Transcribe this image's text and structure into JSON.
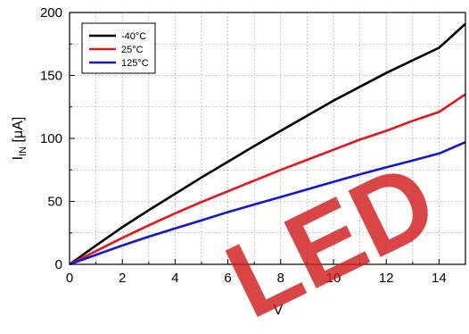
{
  "chart_data": {
    "type": "line",
    "ylabel_main": "I",
    "ylabel_sub": "IN",
    "ylabel_unit": " [μA]",
    "xlabel": "V",
    "xlim": [
      0,
      15
    ],
    "ylim": [
      0,
      200
    ],
    "x_ticks": [
      0,
      2,
      4,
      6,
      8,
      10,
      12,
      14
    ],
    "y_ticks": [
      0,
      50,
      100,
      150,
      200
    ],
    "grid": true,
    "legend_position": "top-left",
    "x": [
      0,
      1,
      2,
      3,
      4,
      5,
      6,
      7,
      8,
      9,
      10,
      11,
      12,
      13,
      14,
      15
    ],
    "series": [
      {
        "name": "-40°C",
        "color": "#000000",
        "values": [
          0,
          15,
          29.5,
          43,
          56,
          69,
          81.5,
          94,
          106,
          118,
          130,
          141,
          152,
          162,
          172,
          191
        ]
      },
      {
        "name": "25°C",
        "color": "#e8141b",
        "values": [
          0,
          10.5,
          21,
          31,
          40.5,
          49.5,
          58,
          66.5,
          75,
          83,
          91,
          99,
          106,
          114,
          121,
          135
        ]
      },
      {
        "name": "125°C",
        "color": "#1414dc",
        "values": [
          0,
          7.5,
          15,
          22,
          28.5,
          35,
          41.5,
          47.5,
          53.5,
          59.5,
          65.5,
          71.5,
          77,
          82.5,
          88,
          97
        ]
      }
    ]
  },
  "watermark": "LED"
}
